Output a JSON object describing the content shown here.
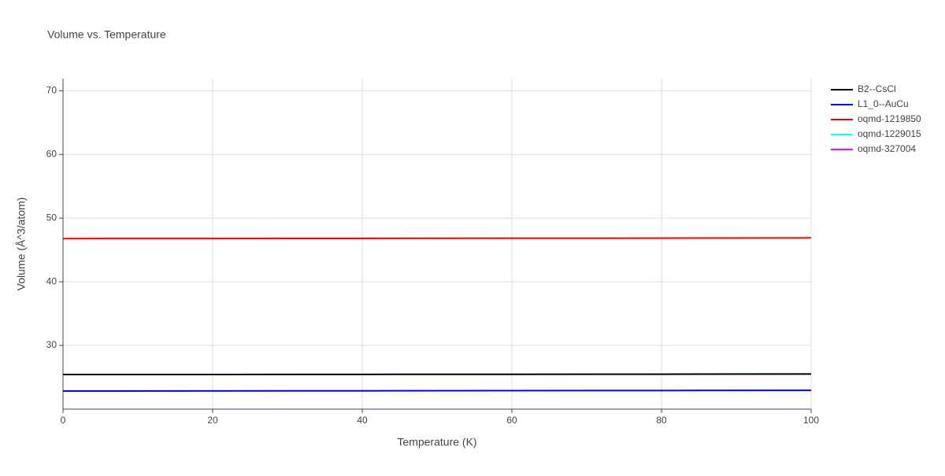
{
  "chart_data": {
    "type": "line",
    "title": "Volume vs. Temperature",
    "x_label": "Temperature (K)",
    "y_label": "Volume (Å^3/atom)",
    "x": [
      0,
      20,
      40,
      60,
      80,
      100
    ],
    "series": [
      {
        "name": "B2--CsCl",
        "color": "#000000",
        "values": [
          25.43,
          25.44,
          25.46,
          25.47,
          25.49,
          25.51
        ]
      },
      {
        "name": "L1_0--AuCu",
        "color": "#0000ff",
        "values": [
          22.84,
          22.86,
          22.88,
          22.9,
          22.92,
          22.95
        ]
      },
      {
        "name": "oqmd-1219850",
        "color": "#ff0000",
        "values": [
          46.79,
          46.8,
          46.82,
          46.84,
          46.86,
          46.9
        ]
      },
      {
        "name": "oqmd-1229015",
        "color": "#00ffff",
        "values": [
          null,
          null,
          null,
          null,
          null,
          null
        ]
      },
      {
        "name": "oqmd-327004",
        "color": "#ff00ff",
        "values": [
          null,
          null,
          null,
          null,
          null,
          null
        ]
      }
    ],
    "xlim": [
      0,
      100
    ],
    "xticks": [
      0,
      20,
      40,
      60,
      80,
      100
    ],
    "ylim": [
      20,
      71.9
    ],
    "yticks": [
      30,
      40,
      50,
      60,
      70
    ],
    "grid": true,
    "legend": "right"
  }
}
